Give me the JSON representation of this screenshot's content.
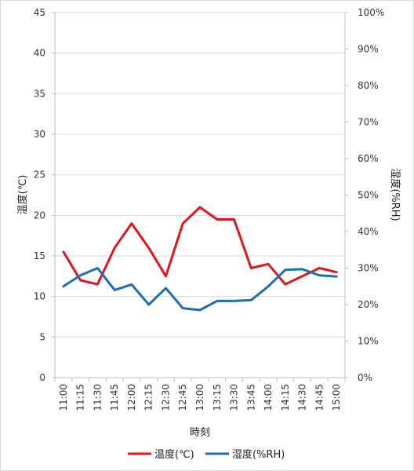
{
  "chart_data": {
    "type": "line",
    "xlabel": "時刻",
    "ylabel_left": "温度(℃)",
    "ylabel_right": "湿度(%RH)",
    "categories": [
      "11:00",
      "11:15",
      "11:30",
      "11:45",
      "12:00",
      "12:15",
      "12:30",
      "12:45",
      "13:00",
      "13:15",
      "13:30",
      "13:45",
      "14:00",
      "14:15",
      "14:30",
      "14:45",
      "15:00"
    ],
    "y_left": {
      "min": 0,
      "max": 45,
      "step": 5,
      "ticks": [
        "0",
        "5",
        "10",
        "15",
        "20",
        "25",
        "30",
        "35",
        "40",
        "45"
      ]
    },
    "y_right": {
      "min": 0,
      "max": 100,
      "step": 10,
      "ticks": [
        "0%",
        "10%",
        "20%",
        "30%",
        "40%",
        "50%",
        "60%",
        "70%",
        "80%",
        "90%",
        "100%"
      ]
    },
    "grid": true,
    "legend_position": "bottom",
    "series": [
      {
        "name": "温度(℃)",
        "axis": "left",
        "color": "#e3151b",
        "values": [
          15.5,
          12.0,
          11.5,
          16.0,
          19.0,
          16.0,
          12.5,
          19.0,
          21.0,
          19.5,
          19.5,
          13.5,
          14.0,
          11.5,
          12.5,
          13.5,
          13.0
        ]
      },
      {
        "name": "湿度(%RH)",
        "axis": "right",
        "color": "#1f6eb5",
        "values": [
          25,
          28,
          30,
          24,
          25.5,
          20,
          24.5,
          19,
          18.5,
          21,
          21,
          21.2,
          25,
          29.5,
          29.7,
          28,
          27.7
        ]
      }
    ]
  }
}
